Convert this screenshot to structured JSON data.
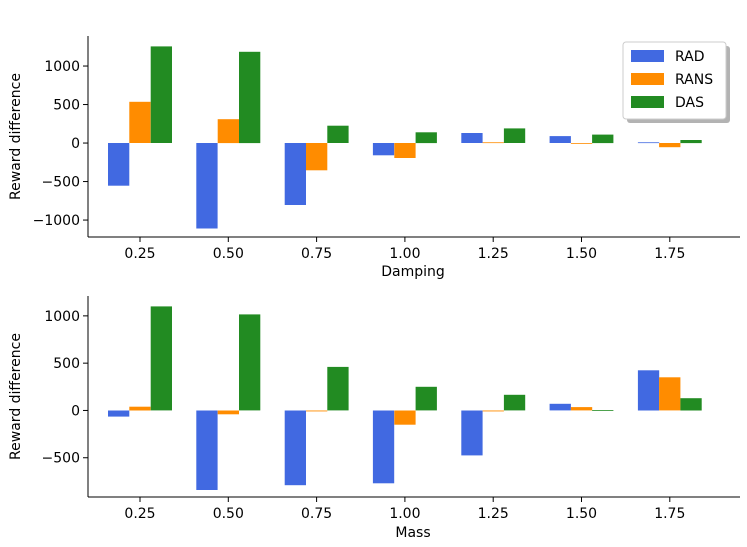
{
  "colors": {
    "RAD": "#4169e1",
    "RANS": "#ff8c00",
    "DAS": "#228b22"
  },
  "chart_data": [
    {
      "type": "bar",
      "xlabel": "Damping",
      "ylabel": "Reward difference",
      "categories": [
        "0.25",
        "0.50",
        "0.75",
        "1.00",
        "1.25",
        "1.50",
        "1.75"
      ],
      "ylim": [
        -1220,
        1390
      ],
      "yticks": [
        -1000,
        -500,
        0,
        500,
        1000
      ],
      "ytick_labels": [
        "−1000",
        "−500",
        "0",
        "500",
        "1000"
      ],
      "legend": {
        "placement": "top-right",
        "entries": [
          "RAD",
          "RANS",
          "DAS"
        ]
      },
      "series": [
        {
          "name": "RAD",
          "values": [
            -555,
            -1110,
            -805,
            -160,
            130,
            90,
            10
          ]
        },
        {
          "name": "RANS",
          "values": [
            535,
            310,
            -355,
            -195,
            10,
            -10,
            -55
          ]
        },
        {
          "name": "DAS",
          "values": [
            1255,
            1185,
            225,
            140,
            190,
            110,
            40
          ]
        }
      ]
    },
    {
      "type": "bar",
      "xlabel": "Mass",
      "ylabel": "Reward difference",
      "categories": [
        "0.25",
        "0.50",
        "0.75",
        "1.00",
        "1.25",
        "1.50",
        "1.75"
      ],
      "ylim": [
        -915,
        1210
      ],
      "yticks": [
        -500,
        0,
        500,
        1000
      ],
      "ytick_labels": [
        "−500",
        "0",
        "500",
        "1000"
      ],
      "series": [
        {
          "name": "RAD",
          "values": [
            -65,
            -840,
            -790,
            -770,
            -475,
            70,
            425
          ]
        },
        {
          "name": "RANS",
          "values": [
            40,
            -40,
            -10,
            -150,
            -10,
            35,
            350
          ]
        },
        {
          "name": "DAS",
          "values": [
            1100,
            1015,
            460,
            250,
            165,
            5,
            130
          ]
        }
      ]
    }
  ]
}
